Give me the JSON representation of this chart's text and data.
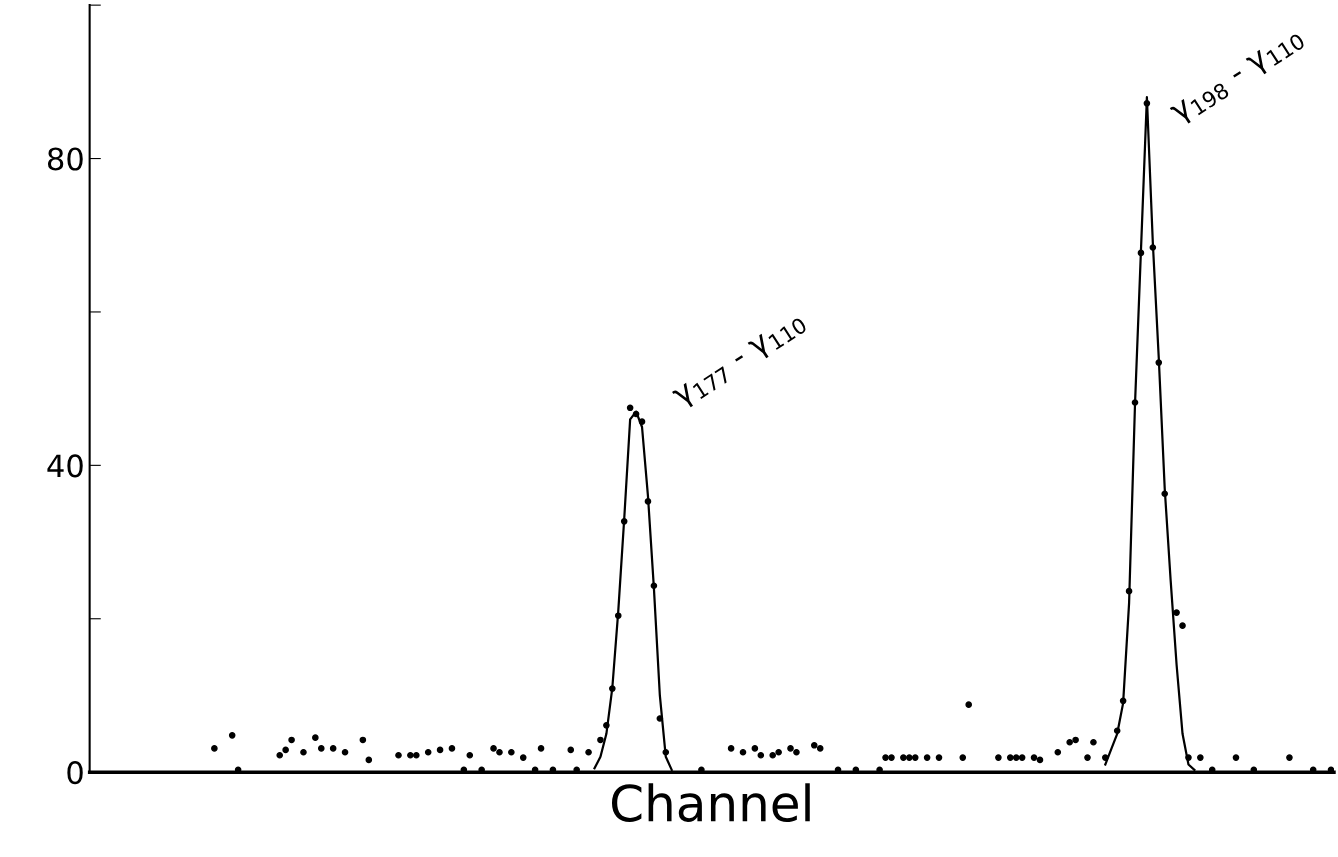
{
  "chart_data": {
    "type": "scatter",
    "xlabel": "Channel",
    "categories": [
      null,
      null,
      null,
      null,
      null,
      null,
      null,
      null,
      null,
      null,
      null,
      null,
      null,
      null,
      null,
      null,
      null,
      null,
      null,
      null,
      null,
      null,
      null,
      null,
      null,
      null,
      null,
      null,
      null,
      null,
      null,
      null,
      null,
      null,
      null,
      null,
      null,
      null,
      null,
      null,
      null,
      null,
      null,
      null,
      null,
      null,
      null,
      null,
      null,
      null,
      null,
      null,
      null,
      null,
      null,
      null,
      null,
      null,
      null,
      null,
      null,
      null,
      null,
      null,
      null,
      null,
      null,
      null,
      null,
      null,
      null,
      null,
      null,
      null,
      null,
      null,
      null,
      null,
      null,
      null,
      null,
      null,
      null,
      null,
      null,
      null,
      null,
      null,
      null,
      null,
      null,
      null,
      null,
      null,
      null,
      null,
      null,
      null,
      null,
      null,
      null,
      null,
      null,
      null,
      null,
      null,
      null,
      null,
      null,
      null,
      null,
      null,
      null,
      null,
      null,
      null,
      null,
      null,
      null,
      null,
      null,
      null,
      null,
      null,
      null,
      null,
      null,
      null,
      null,
      null,
      null,
      null,
      null,
      null,
      null,
      null,
      null,
      null,
      null,
      null,
      null,
      null,
      null,
      null,
      null,
      null,
      null,
      null,
      null,
      null,
      null,
      null,
      null,
      null,
      null,
      null,
      null,
      null,
      null,
      null,
      null,
      null,
      null,
      null,
      null,
      null,
      null,
      null,
      null,
      null,
      null,
      null,
      null,
      null,
      null,
      null,
      null,
      null,
      null,
      null,
      null,
      null,
      null,
      null,
      null,
      null,
      null,
      null,
      null,
      null,
      null,
      null,
      null,
      null,
      null,
      null,
      null,
      null,
      null,
      null,
      null,
      null,
      null,
      null,
      null,
      null,
      null,
      null,
      null
    ],
    "series": [
      {
        "color": "#000000",
        "marker": "circle",
        "values": [
          null,
          null,
          null,
          null,
          null,
          null,
          null,
          null,
          null,
          null,
          null,
          null,
          null,
          null,
          null,
          null,
          null,
          null,
          null,
          null,
          3.1,
          null,
          null,
          4.8,
          0.3,
          null,
          null,
          null,
          null,
          null,
          null,
          2.2,
          2.9,
          4.2,
          null,
          2.6,
          null,
          4.5,
          3.1,
          null,
          3.1,
          null,
          2.6,
          null,
          null,
          4.2,
          1.6,
          null,
          null,
          null,
          null,
          2.2,
          null,
          2.2,
          2.2,
          null,
          2.6,
          null,
          2.9,
          null,
          3.1,
          null,
          0.3,
          2.2,
          null,
          0.3,
          null,
          3.1,
          2.6,
          null,
          2.6,
          null,
          1.9,
          null,
          0.3,
          3.1,
          null,
          0.3,
          null,
          null,
          2.9,
          0.3,
          null,
          2.6,
          null,
          4.2,
          6.1,
          10.9,
          20.4,
          32.7,
          47.5,
          46.7,
          45.7,
          35.3,
          24.3,
          7.0,
          2.6,
          null,
          null,
          null,
          null,
          null,
          0.3,
          null,
          null,
          null,
          null,
          3.1,
          null,
          2.6,
          null,
          3.1,
          2.2,
          null,
          2.2,
          2.6,
          null,
          3.1,
          2.6,
          null,
          null,
          3.5,
          3.1,
          null,
          null,
          0.3,
          null,
          null,
          0.3,
          null,
          null,
          null,
          0.3,
          1.9,
          1.9,
          null,
          1.9,
          1.9,
          1.9,
          null,
          1.9,
          null,
          1.9,
          null,
          null,
          null,
          1.9,
          8.8,
          null,
          null,
          null,
          null,
          1.9,
          null,
          1.9,
          1.9,
          1.9,
          null,
          1.9,
          1.6,
          null,
          null,
          2.6,
          null,
          3.9,
          4.2,
          null,
          1.9,
          3.9,
          null,
          1.9,
          null,
          5.4,
          9.3,
          23.6,
          48.2,
          67.7,
          87.2,
          68.4,
          53.4,
          36.3,
          null,
          20.8,
          19.1,
          1.9,
          null,
          1.9,
          null,
          0.3,
          null,
          null,
          null,
          1.9,
          null,
          null,
          0.3,
          null,
          null,
          null,
          null,
          null,
          1.9,
          null,
          null,
          null,
          0.3,
          null,
          null,
          0.3
        ]
      },
      {
        "type": "line",
        "color": "#000000",
        "marker": "none",
        "values": [
          null,
          null,
          null,
          null,
          null,
          null,
          null,
          null,
          null,
          null,
          null,
          null,
          null,
          null,
          null,
          null,
          null,
          null,
          null,
          null,
          null,
          null,
          null,
          null,
          null,
          null,
          null,
          null,
          null,
          null,
          null,
          null,
          null,
          null,
          null,
          null,
          null,
          null,
          null,
          null,
          null,
          null,
          null,
          null,
          null,
          null,
          null,
          null,
          null,
          null,
          null,
          null,
          null,
          null,
          null,
          null,
          null,
          null,
          null,
          null,
          null,
          null,
          null,
          null,
          null,
          null,
          null,
          null,
          null,
          null,
          null,
          null,
          null,
          null,
          null,
          null,
          null,
          null,
          null,
          null,
          null,
          null,
          null,
          null,
          0.5,
          2,
          5,
          11,
          21,
          33,
          46,
          47,
          45,
          36,
          24,
          10,
          2,
          0.3,
          null,
          null,
          null,
          null,
          null,
          null,
          null,
          null,
          null,
          null,
          null,
          null,
          null,
          null,
          null,
          null,
          null,
          null,
          null,
          null,
          null,
          null,
          null,
          null,
          null,
          null,
          null,
          null,
          null,
          null,
          null,
          null,
          null,
          null,
          null,
          null,
          null,
          null,
          null,
          null,
          null,
          null,
          null,
          null,
          null,
          null,
          null,
          null,
          null,
          null,
          null,
          null,
          null,
          null,
          null,
          null,
          null,
          null,
          null,
          null,
          null,
          null,
          null,
          null,
          null,
          null,
          null,
          null,
          null,
          null,
          null,
          null,
          1,
          3,
          5,
          9,
          22,
          48,
          68,
          88,
          69,
          54,
          37,
          25,
          14,
          5,
          1,
          0.3,
          null,
          null,
          null,
          null,
          null,
          null,
          null,
          null,
          null,
          null,
          null,
          null,
          null,
          null,
          null,
          null,
          null,
          null,
          null,
          null,
          null,
          null,
          null
        ]
      }
    ],
    "ylim": [
      0,
      100
    ],
    "yticks": [
      0,
      {
        "value": 20,
        "label": null
      },
      40,
      {
        "value": 60,
        "label": null
      },
      80,
      {
        "value": 100,
        "label": null
      }
    ],
    "tick_labels": "y",
    "grid": false,
    "annotations": [
      "γ$_{177}$ - γ$_{110}$",
      "γ$_{198}$ - γ$_{110}$"
    ]
  }
}
